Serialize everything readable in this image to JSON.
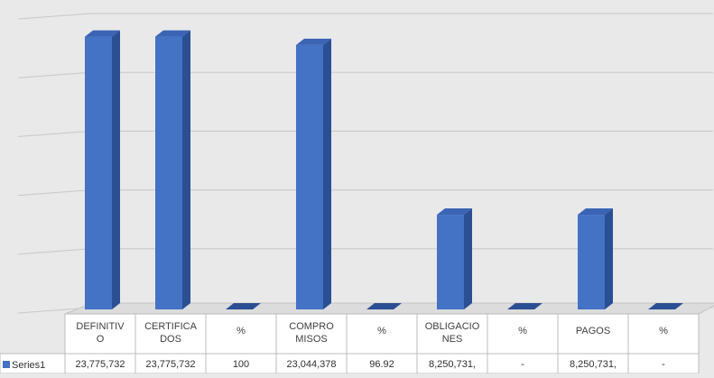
{
  "chart_data": {
    "type": "bar",
    "style": "3d-column",
    "title": "",
    "xlabel": "",
    "ylabel": "",
    "ylim": [
      0,
      25000000
    ],
    "grid": true,
    "legend": "data-table-row",
    "categories": [
      "DEFINITIVO",
      "CERTIFICADOS",
      "%",
      "COMPROMISOS",
      "%",
      "OBLIGACIONES",
      "%",
      "PAGOS",
      "%"
    ],
    "category_label_lines": [
      [
        "DEFINITIV",
        "O"
      ],
      [
        "CERTIFICA",
        "DOS"
      ],
      [
        "%"
      ],
      [
        "COMPRO",
        "MISOS"
      ],
      [
        "%"
      ],
      [
        "OBLIGACIO",
        "NES"
      ],
      [
        "%"
      ],
      [
        "PAGOS"
      ],
      [
        "%"
      ]
    ],
    "series": [
      {
        "name": "Series1",
        "values": [
          23775732,
          23775732,
          100,
          23044378,
          96.92,
          8250731,
          0,
          8250731,
          0
        ],
        "display_labels": [
          "23,775,732",
          "23,775,732",
          "100",
          "23,044,378",
          "96.92",
          "8,250,731,",
          "-",
          "8,250,731,",
          "-"
        ],
        "color": "#4472c4"
      }
    ]
  }
}
